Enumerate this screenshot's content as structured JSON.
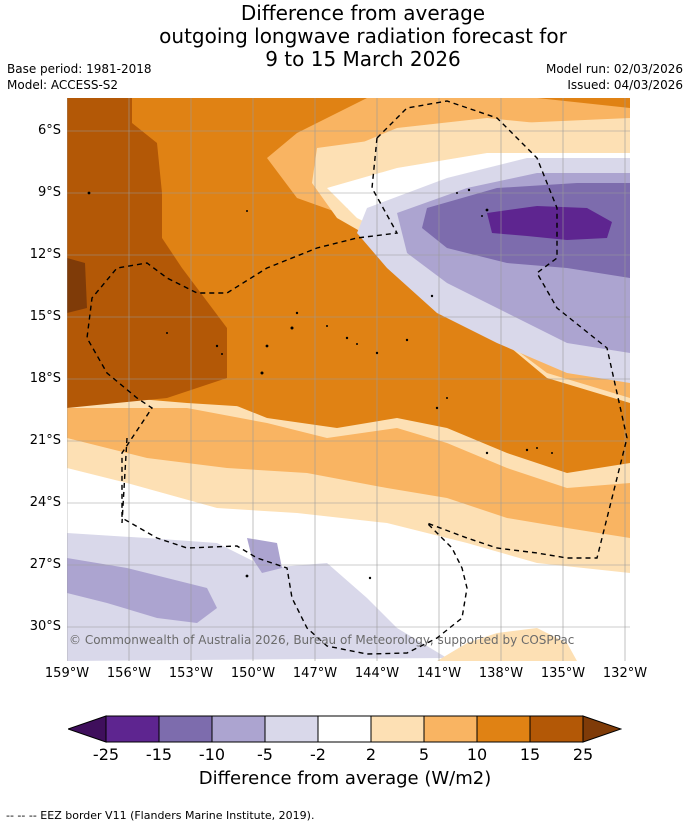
{
  "title_lines": [
    "Difference from average",
    "outgoing longwave radiation forecast for",
    "9 to 15 March 2026"
  ],
  "meta": {
    "base_period": "Base period: 1981-2018",
    "model": "Model: ACCESS-S2",
    "model_run": "Model run: 02/03/2026",
    "issued": "Issued: 04/03/2026"
  },
  "map": {
    "lat_labels": [
      "6°S",
      "9°S",
      "12°S",
      "15°S",
      "18°S",
      "21°S",
      "24°S",
      "27°S",
      "30°S"
    ],
    "lon_labels": [
      "159°W",
      "156°W",
      "153°W",
      "150°W",
      "147°W",
      "144°W",
      "141°W",
      "138°W",
      "135°W",
      "132°W"
    ],
    "credit": "© Commonwealth of Australia 2026, Bureau of Meteorology, supported by COSPPac"
  },
  "colorbar": {
    "ticks": [
      "-25",
      "-15",
      "-10",
      "-5",
      "-2",
      "2",
      "5",
      "10",
      "15",
      "25"
    ],
    "colors": [
      "#3f0f5c",
      "#5e2590",
      "#7d6cad",
      "#aca4d0",
      "#d9d8ea",
      "#ffffff",
      "#fde0b4",
      "#f9b462",
      "#e08214",
      "#b35806",
      "#7f3b08"
    ],
    "label": "Difference from average (W/m2)"
  },
  "footer": "--  --  -- EEZ border V11 (Flanders Marine Institute, 2019)."
}
